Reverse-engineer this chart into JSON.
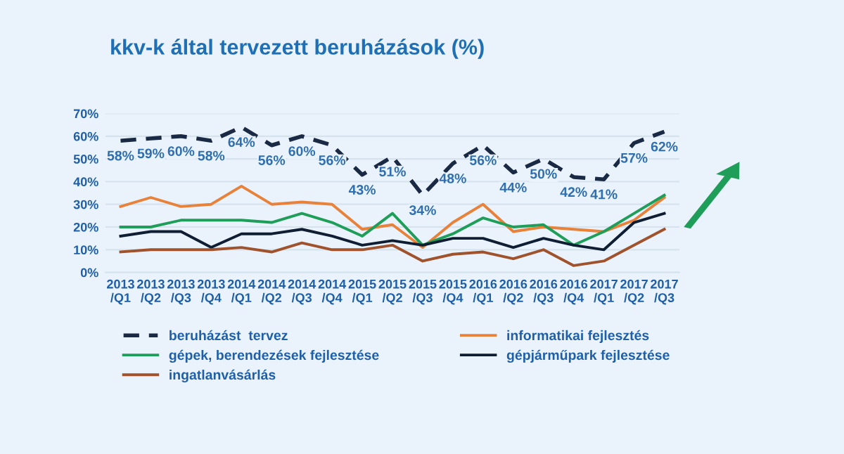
{
  "chart_data": {
    "type": "line",
    "title": "kkv-k által tervezett beruházások (%)",
    "categories": [
      "2013\n/Q1",
      "2013\n/Q2",
      "2013\n/Q3",
      "2013\n/Q4",
      "2014\n/Q1",
      "2014\n/Q2",
      "2014\n/Q3",
      "2014\n/Q4",
      "2015\n/Q1",
      "2015\n/Q2",
      "2015\n/Q3",
      "2015\n/Q4",
      "2016\n/Q1",
      "2016\n/Q2",
      "2016\n/Q3",
      "2016\n/Q4",
      "2017\n/Q1",
      "2017\n/Q2",
      "2017\n/Q3"
    ],
    "series": [
      {
        "name": "beruházást  tervez",
        "color": "#1a2a44",
        "line_style": "dashed",
        "value_labels": [
          "58%",
          "59%",
          "60%",
          "58%",
          "64%",
          "56%",
          "60%",
          "56%",
          "43%",
          "51%",
          "34%",
          "48%",
          "56%",
          "44%",
          "50%",
          "42%",
          "41%",
          "57%",
          "62%"
        ],
        "values": [
          58,
          59,
          60,
          58,
          64,
          56,
          60,
          56,
          43,
          51,
          34,
          48,
          56,
          44,
          50,
          42,
          41,
          57,
          62
        ]
      },
      {
        "name": "informatikai fejlesztés",
        "color": "#e8823a",
        "values": [
          29,
          33,
          29,
          30,
          38,
          30,
          31,
          30,
          19,
          21,
          11,
          22,
          30,
          18,
          20,
          19,
          18,
          23,
          33
        ]
      },
      {
        "name": "gépek, berendezések fejlesztése",
        "color": "#1f9e5a",
        "values": [
          20,
          20,
          23,
          23,
          23,
          22,
          26,
          22,
          16,
          26,
          12,
          17,
          24,
          20,
          21,
          12,
          18,
          26,
          34
        ]
      },
      {
        "name": "gépjárműpark fejlesztése",
        "color": "#0f1e33",
        "values": [
          16,
          18,
          18,
          11,
          17,
          17,
          19,
          16,
          12,
          14,
          12,
          15,
          15,
          11,
          15,
          12,
          10,
          22,
          26
        ]
      },
      {
        "name": "ingatlanvásárlás",
        "color": "#a0522d",
        "values": [
          9,
          10,
          10,
          10,
          11,
          9,
          13,
          10,
          10,
          12,
          5,
          8,
          9,
          6,
          10,
          3,
          5,
          12,
          19
        ]
      }
    ],
    "ylim": [
      0,
      70
    ],
    "yticks": [
      {
        "value": 0,
        "label": "0%"
      },
      {
        "value": 10,
        "label": "10%"
      },
      {
        "value": 20,
        "label": "20%"
      },
      {
        "value": 30,
        "label": "30%"
      },
      {
        "value": 40,
        "label": "40%"
      },
      {
        "value": 50,
        "label": "50%"
      },
      {
        "value": 60,
        "label": "60%"
      },
      {
        "value": 70,
        "label": "70%"
      }
    ],
    "grid": "y",
    "legend": "bottom",
    "marker": "none"
  }
}
